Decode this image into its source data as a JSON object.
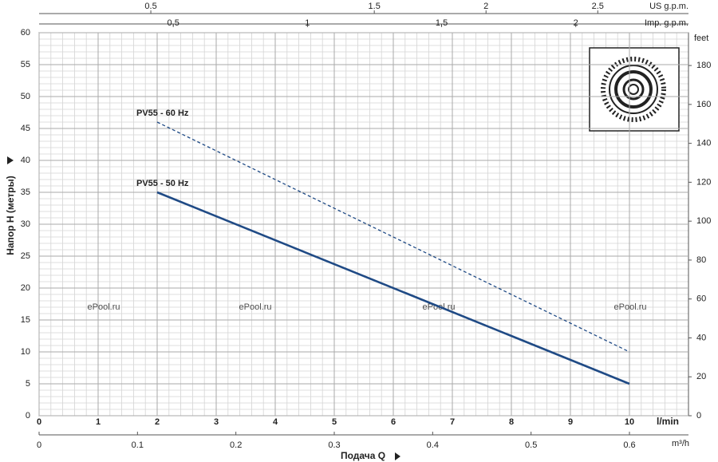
{
  "chart_data": {
    "type": "line",
    "ylabel": "Напор H (метры)",
    "xlabel": "Подача Q",
    "x_unit": "l/min",
    "x": [
      2,
      10
    ],
    "xlim": [
      0,
      11
    ],
    "xticks": [
      0,
      1,
      2,
      3,
      4,
      5,
      6,
      7,
      8,
      9,
      10
    ],
    "ylim": [
      0,
      60
    ],
    "yticks": [
      0,
      5,
      10,
      15,
      20,
      25,
      30,
      35,
      40,
      45,
      50,
      55,
      60
    ],
    "y2label": "feet",
    "y2lim": [
      0,
      196.85
    ],
    "y2ticks": [
      0,
      20,
      40,
      60,
      80,
      100,
      120,
      140,
      160,
      180
    ],
    "grid": true,
    "series": [
      {
        "name": "PV55 - 60 Hz",
        "color": "#1f4a85",
        "style": "dashed",
        "values": [
          46,
          10
        ]
      },
      {
        "name": "PV55 - 50 Hz",
        "color": "#1f4a85",
        "style": "solid",
        "values": [
          35,
          5
        ]
      }
    ],
    "extra_x_axes": [
      {
        "label": "US g.p.m.",
        "position": "top",
        "xlim": [
          0,
          2.906
        ],
        "xticks": [
          0.5,
          1.5,
          2,
          2.5
        ]
      },
      {
        "label": "Imp. g.p.m.",
        "position": "top",
        "xlim": [
          0,
          2.42
        ],
        "xticks": [
          0.5,
          1,
          1.5,
          2
        ]
      },
      {
        "label": "m³/h",
        "position": "bottom",
        "xlim": [
          0,
          0.66
        ],
        "xticks": [
          0,
          0.1,
          0.2,
          0.3,
          0.4,
          0.5,
          0.6
        ]
      }
    ],
    "watermark": "ePool.ru"
  }
}
